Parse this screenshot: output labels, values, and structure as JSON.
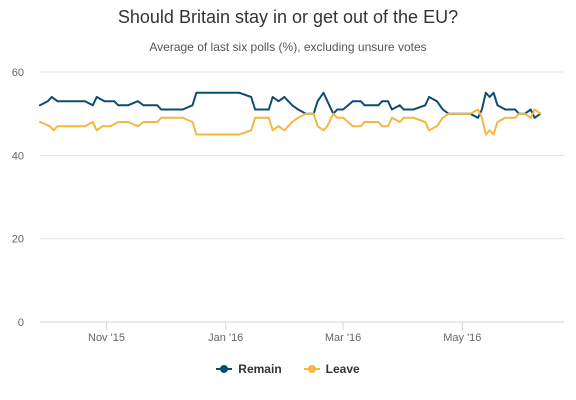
{
  "chart_data": {
    "type": "line",
    "title": "Should Britain stay in or get out of the EU?",
    "subtitle": "Average of last six polls (%), excluding unsure votes",
    "xlabel": "",
    "ylabel": "",
    "ylim": [
      0,
      60
    ],
    "yticks": [
      0,
      20,
      40,
      60
    ],
    "xlim": [
      "2015-09-28",
      "2016-06-22"
    ],
    "xticks": [
      {
        "date": "2015-11-01",
        "label": "Nov '15"
      },
      {
        "date": "2016-01-01",
        "label": "Jan '16"
      },
      {
        "date": "2016-03-01",
        "label": "Mar '16"
      },
      {
        "date": "2016-05-01",
        "label": "May '16"
      }
    ],
    "grid": true,
    "legend_position": "bottom-center",
    "series": [
      {
        "name": "Remain",
        "color": "#0f4d6e",
        "points": [
          [
            "2015-09-28",
            52
          ],
          [
            "2015-10-02",
            53
          ],
          [
            "2015-10-04",
            54
          ],
          [
            "2015-10-07",
            53
          ],
          [
            "2015-10-14",
            53
          ],
          [
            "2015-10-21",
            53
          ],
          [
            "2015-10-25",
            52
          ],
          [
            "2015-10-27",
            54
          ],
          [
            "2015-10-31",
            53
          ],
          [
            "2015-11-05",
            53
          ],
          [
            "2015-11-07",
            52
          ],
          [
            "2015-11-12",
            52
          ],
          [
            "2015-11-17",
            53
          ],
          [
            "2015-11-20",
            52
          ],
          [
            "2015-11-27",
            52
          ],
          [
            "2015-11-29",
            51
          ],
          [
            "2015-12-10",
            51
          ],
          [
            "2015-12-15",
            52
          ],
          [
            "2015-12-17",
            55
          ],
          [
            "2015-12-26",
            55
          ],
          [
            "2016-01-08",
            55
          ],
          [
            "2016-01-14",
            54
          ],
          [
            "2016-01-16",
            51
          ],
          [
            "2016-01-23",
            51
          ],
          [
            "2016-01-25",
            54
          ],
          [
            "2016-01-28",
            53
          ],
          [
            "2016-01-31",
            54
          ],
          [
            "2016-02-04",
            52
          ],
          [
            "2016-02-07",
            51
          ],
          [
            "2016-02-11",
            50
          ],
          [
            "2016-02-15",
            50
          ],
          [
            "2016-02-17",
            53
          ],
          [
            "2016-02-20",
            55
          ],
          [
            "2016-02-22",
            53
          ],
          [
            "2016-02-25",
            50
          ],
          [
            "2016-02-27",
            51
          ],
          [
            "2016-03-01",
            51
          ],
          [
            "2016-03-06",
            53
          ],
          [
            "2016-03-10",
            53
          ],
          [
            "2016-03-12",
            52
          ],
          [
            "2016-03-19",
            52
          ],
          [
            "2016-03-21",
            53
          ],
          [
            "2016-03-24",
            53
          ],
          [
            "2016-03-26",
            51
          ],
          [
            "2016-03-30",
            52
          ],
          [
            "2016-04-01",
            51
          ],
          [
            "2016-04-06",
            51
          ],
          [
            "2016-04-12",
            52
          ],
          [
            "2016-04-14",
            54
          ],
          [
            "2016-04-18",
            53
          ],
          [
            "2016-04-21",
            51
          ],
          [
            "2016-04-24",
            50
          ],
          [
            "2016-04-30",
            50
          ],
          [
            "2016-05-05",
            50
          ],
          [
            "2016-05-09",
            49
          ],
          [
            "2016-05-11",
            51
          ],
          [
            "2016-05-13",
            55
          ],
          [
            "2016-05-15",
            54
          ],
          [
            "2016-05-17",
            55
          ],
          [
            "2016-05-19",
            52
          ],
          [
            "2016-05-23",
            51
          ],
          [
            "2016-05-28",
            51
          ],
          [
            "2016-05-30",
            50
          ],
          [
            "2016-06-02",
            50
          ],
          [
            "2016-06-05",
            51
          ],
          [
            "2016-06-07",
            49
          ],
          [
            "2016-06-10",
            50
          ]
        ]
      },
      {
        "name": "Leave",
        "color": "#f5b642",
        "points": [
          [
            "2015-09-28",
            48
          ],
          [
            "2015-10-03",
            47
          ],
          [
            "2015-10-05",
            46
          ],
          [
            "2015-10-07",
            47
          ],
          [
            "2015-10-14",
            47
          ],
          [
            "2015-10-21",
            47
          ],
          [
            "2015-10-25",
            48
          ],
          [
            "2015-10-27",
            46
          ],
          [
            "2015-10-30",
            47
          ],
          [
            "2015-11-03",
            47
          ],
          [
            "2015-11-07",
            48
          ],
          [
            "2015-11-12",
            48
          ],
          [
            "2015-11-17",
            47
          ],
          [
            "2015-11-20",
            48
          ],
          [
            "2015-11-27",
            48
          ],
          [
            "2015-11-29",
            49
          ],
          [
            "2015-12-10",
            49
          ],
          [
            "2015-12-15",
            48
          ],
          [
            "2015-12-17",
            45
          ],
          [
            "2015-12-26",
            45
          ],
          [
            "2016-01-08",
            45
          ],
          [
            "2016-01-14",
            46
          ],
          [
            "2016-01-16",
            49
          ],
          [
            "2016-01-23",
            49
          ],
          [
            "2016-01-25",
            46
          ],
          [
            "2016-01-28",
            47
          ],
          [
            "2016-01-31",
            46
          ],
          [
            "2016-02-04",
            48
          ],
          [
            "2016-02-07",
            49
          ],
          [
            "2016-02-11",
            50
          ],
          [
            "2016-02-15",
            50
          ],
          [
            "2016-02-17",
            47
          ],
          [
            "2016-02-20",
            46
          ],
          [
            "2016-02-22",
            47
          ],
          [
            "2016-02-25",
            50
          ],
          [
            "2016-02-27",
            49
          ],
          [
            "2016-03-01",
            49
          ],
          [
            "2016-03-06",
            47
          ],
          [
            "2016-03-10",
            47
          ],
          [
            "2016-03-12",
            48
          ],
          [
            "2016-03-19",
            48
          ],
          [
            "2016-03-21",
            47
          ],
          [
            "2016-03-24",
            47
          ],
          [
            "2016-03-26",
            49
          ],
          [
            "2016-03-30",
            48
          ],
          [
            "2016-04-01",
            49
          ],
          [
            "2016-04-06",
            49
          ],
          [
            "2016-04-12",
            48
          ],
          [
            "2016-04-14",
            46
          ],
          [
            "2016-04-18",
            47
          ],
          [
            "2016-04-21",
            49
          ],
          [
            "2016-04-24",
            50
          ],
          [
            "2016-04-30",
            50
          ],
          [
            "2016-05-05",
            50
          ],
          [
            "2016-05-09",
            51
          ],
          [
            "2016-05-11",
            49
          ],
          [
            "2016-05-13",
            45
          ],
          [
            "2016-05-15",
            46
          ],
          [
            "2016-05-17",
            45
          ],
          [
            "2016-05-19",
            48
          ],
          [
            "2016-05-23",
            49
          ],
          [
            "2016-05-28",
            49
          ],
          [
            "2016-05-30",
            50
          ],
          [
            "2016-06-02",
            50
          ],
          [
            "2016-06-05",
            49
          ],
          [
            "2016-06-07",
            51
          ],
          [
            "2016-06-10",
            50
          ]
        ]
      }
    ]
  }
}
